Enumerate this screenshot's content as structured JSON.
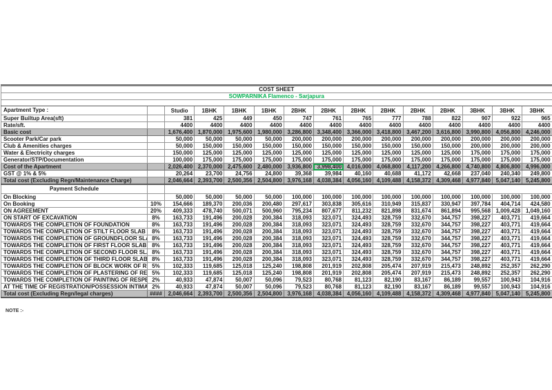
{
  "header": {
    "title": "COST SHEET",
    "subtitle": "SOWPARNIKA Flamenco - Sarjapura",
    "subtitle_color": "#00B050"
  },
  "page": {
    "note": "NOTE :-"
  },
  "colors": {
    "shaded_row": "#bfbfbf",
    "grid_line": "#969696",
    "subtitle_green": "#00B050",
    "selected_cell_outline": "#16A24A"
  },
  "columns": [
    "Studio",
    "1BHK",
    "1BHK",
    "1BHK",
    "2BHK",
    "2BHK",
    "2BHK",
    "2BHK",
    "2BHK",
    "2BHK",
    "3BHK",
    "3BHK",
    "3BHK"
  ],
  "cost_table": {
    "rows": [
      {
        "label": "Apartment Type :",
        "pct": "",
        "header": true,
        "tall": true,
        "values": [
          "Studio",
          "1BHK",
          "1BHK",
          "1BHK",
          "2BHK",
          "2BHK",
          "2BHK",
          "2BHK",
          "2BHK",
          "2BHK",
          "3BHK",
          "3BHK",
          "3BHK"
        ]
      },
      {
        "label": "Super Builtup Area(sft)",
        "pct": "",
        "values": [
          "381",
          "425",
          "449",
          "450",
          "747",
          "761",
          "765",
          "777",
          "788",
          "822",
          "907",
          "922",
          "965"
        ]
      },
      {
        "label": "Rate/sft.",
        "pct": "",
        "values": [
          "4400",
          "4400",
          "4400",
          "4400",
          "4400",
          "4400",
          "4400",
          "4400",
          "4400",
          "4400",
          "4400",
          "4400",
          "4400"
        ]
      },
      {
        "label": "Basic cost",
        "pct": "",
        "shaded": true,
        "values": [
          "1,676,400",
          "1,870,000",
          "1,975,600",
          "1,980,000",
          "3,286,800",
          "3,348,400",
          "3,366,000",
          "3,418,800",
          "3,467,200",
          "3,616,800",
          "3,990,800",
          "4,056,800",
          "4,246,000"
        ]
      },
      {
        "label": "Scooter Park/Car park",
        "pct": "",
        "values": [
          "50,000",
          "50,000",
          "50,000",
          "50,000",
          "200,000",
          "200,000",
          "200,000",
          "200,000",
          "200,000",
          "200,000",
          "200,000",
          "200,000",
          "200,000"
        ]
      },
      {
        "label": "Club & Amenities charges",
        "pct": "",
        "values": [
          "50,000",
          "150,000",
          "150,000",
          "150,000",
          "150,000",
          "150,000",
          "150,000",
          "150,000",
          "150,000",
          "150,000",
          "200,000",
          "200,000",
          "200,000"
        ]
      },
      {
        "label": "Water & Electricity charges",
        "pct": "",
        "values": [
          "150,000",
          "125,000",
          "125,000",
          "125,000",
          "125,000",
          "125,000",
          "125,000",
          "125,000",
          "125,000",
          "125,000",
          "175,000",
          "175,000",
          "175,000"
        ]
      },
      {
        "label": "Generator/STP/Documentation",
        "pct": "",
        "values": [
          "100,000",
          "175,000",
          "175,000",
          "175,000",
          "175,000",
          "175,000",
          "175,000",
          "175,000",
          "175,000",
          "175,000",
          "175,000",
          "175,000",
          "175,000"
        ]
      },
      {
        "label": "Cost of the Apartment",
        "pct": "",
        "shaded": true,
        "values": [
          "2,026,400",
          "2,370,000",
          "2,475,600",
          "2,480,000",
          "3,936,800",
          "3,998,400",
          "4,016,000",
          "4,068,800",
          "4,117,200",
          "4,266,800",
          "4,740,800",
          "4,806,800",
          "4,996,000"
        ]
      },
      {
        "label": "GST @ 1% & 5%",
        "pct": "",
        "values": [
          "20,264",
          "23,700",
          "24,756",
          "24,800",
          "39,368",
          "39,984",
          "40,160",
          "40,688",
          "41,172",
          "42,668",
          "237,040",
          "240,340",
          "249,800"
        ]
      },
      {
        "label": "Total cost (Excluding Regn/Maintenance Charge)",
        "pct": "",
        "shaded": true,
        "strong_bottom": true,
        "values": [
          "2,046,664",
          "2,393,700",
          "2,500,356",
          "2,504,800",
          "3,976,168",
          "4,038,384",
          "4,056,160",
          "4,109,488",
          "4,158,372",
          "4,309,468",
          "4,977,840",
          "5,047,140",
          "5,245,800"
        ]
      }
    ]
  },
  "payment_schedule": {
    "title": "Payment Schedule",
    "rows": [
      {
        "label": "On Blocking",
        "pct": "",
        "values": [
          "50,000",
          "50,000",
          "50,000",
          "50,000",
          "100,000",
          "100,000",
          "100,000",
          "100,000",
          "100,000",
          "100,000",
          "100,000",
          "100,000",
          "100,000"
        ]
      },
      {
        "label": "On Booking",
        "pct": "10%",
        "values": [
          "154,666",
          "189,370",
          "200,036",
          "200,480",
          "297,617",
          "303,838",
          "305,616",
          "310,949",
          "315,837",
          "330,947",
          "397,784",
          "404,714",
          "424,580"
        ]
      },
      {
        "label": "ON AGREEMENT",
        "pct": "20%",
        "values": [
          "409,333",
          "478,740",
          "500,071",
          "500,960",
          "795,234",
          "807,677",
          "811,232",
          "821,898",
          "831,674",
          "861,894",
          "995,568",
          "1,009,428",
          "1,049,160"
        ]
      },
      {
        "label": "ON START OF EXCAVATION",
        "pct": "8%",
        "values": [
          "163,733",
          "191,496",
          "200,028",
          "200,384",
          "318,093",
          "323,071",
          "324,493",
          "328,759",
          "332,670",
          "344,757",
          "398,227",
          "403,771",
          "419,664"
        ]
      },
      {
        "label": "TOWARDS THE COMPLETION OF FOUNDATION",
        "pct": "8%",
        "values": [
          "163,733",
          "191,496",
          "200,028",
          "200,384",
          "318,093",
          "323,071",
          "324,493",
          "328,759",
          "332,670",
          "344,757",
          "398,227",
          "403,771",
          "419,664"
        ]
      },
      {
        "label": "TOWARDS THE COMPLETION OF STILT FLOOR SLAB",
        "pct": "8%",
        "values": [
          "163,733",
          "191,496",
          "200,028",
          "200,384",
          "318,093",
          "323,071",
          "324,493",
          "328,759",
          "332,670",
          "344,757",
          "398,227",
          "403,771",
          "419,664"
        ]
      },
      {
        "label": "TOWARDS THE COMPLETION OF GROUNDFLOOR SLAB",
        "pct": "8%",
        "values": [
          "163,733",
          "191,496",
          "200,028",
          "200,384",
          "318,093",
          "323,071",
          "324,493",
          "328,759",
          "332,670",
          "344,757",
          "398,227",
          "403,771",
          "419,664"
        ]
      },
      {
        "label": "TOWARDS THE COMPLETION OF FIRST FLOOR SLAB",
        "pct": "8%",
        "values": [
          "163,733",
          "191,496",
          "200,028",
          "200,384",
          "318,093",
          "323,071",
          "324,493",
          "328,759",
          "332,670",
          "344,757",
          "398,227",
          "403,771",
          "419,664"
        ]
      },
      {
        "label": "TOWARDS THE COMPLETION OF SECOND FLOOR SLAB",
        "pct": "8%",
        "values": [
          "163,733",
          "191,496",
          "200,028",
          "200,384",
          "318,093",
          "323,071",
          "324,493",
          "328,759",
          "332,670",
          "344,757",
          "398,227",
          "403,771",
          "419,664"
        ]
      },
      {
        "label": "TOWARDS THE COMPLETION OF THIRD FLOOR SLAB",
        "pct": "8%",
        "values": [
          "163,733",
          "191,496",
          "200,028",
          "200,384",
          "318,093",
          "323,071",
          "324,493",
          "328,759",
          "332,670",
          "344,757",
          "398,227",
          "403,771",
          "419,664"
        ]
      },
      {
        "label": "TOWARDS THE COMPLETION OF BLOCK WORK OF RESPECTIVE FLOOR",
        "pct": "5%",
        "values": [
          "102,333",
          "119,685",
          "125,018",
          "125,240",
          "198,808",
          "201,919",
          "202,808",
          "205,474",
          "207,919",
          "215,473",
          "248,892",
          "252,357",
          "262,290"
        ]
      },
      {
        "label": "TOWARDS THE COMPLETION OF PLASTERING OF RESPECTIVE FLOOR",
        "pct": "5%",
        "values": [
          "102,333",
          "119,685",
          "125,018",
          "125,240",
          "198,808",
          "201,919",
          "202,808",
          "205,474",
          "207,919",
          "215,473",
          "248,892",
          "252,357",
          "262,290"
        ]
      },
      {
        "label": "TOWARDS THE COMPLETION OF PAINTING OF RESPECTIVE UNIT",
        "pct": "2%",
        "values": [
          "40,933",
          "47,874",
          "50,007",
          "50,096",
          "79,523",
          "80,768",
          "81,123",
          "82,190",
          "83,167",
          "86,189",
          "99,557",
          "100,943",
          "104,916"
        ]
      },
      {
        "label": "AT THE TIME OF REGISTRATION/POSSESSION INTIMATION",
        "pct": "2%",
        "values": [
          "40,933",
          "47,874",
          "50,007",
          "50,096",
          "79,523",
          "80,768",
          "81,123",
          "82,190",
          "83,167",
          "86,189",
          "99,557",
          "100,943",
          "104,916"
        ]
      },
      {
        "label": "Total cost (Excluding Regn/legal charges)",
        "pct": "####",
        "shaded": true,
        "strong_bottom": true,
        "values": [
          "2,046,664",
          "2,393,700",
          "2,500,356",
          "2,504,800",
          "3,976,168",
          "4,038,384",
          "4,056,160",
          "4,109,488",
          "4,158,372",
          "4,309,468",
          "4,977,840",
          "5,047,140",
          "5,245,800"
        ]
      }
    ]
  },
  "selected_cell": {
    "row_label": "Cost of the Apartment",
    "col_index": 5
  }
}
